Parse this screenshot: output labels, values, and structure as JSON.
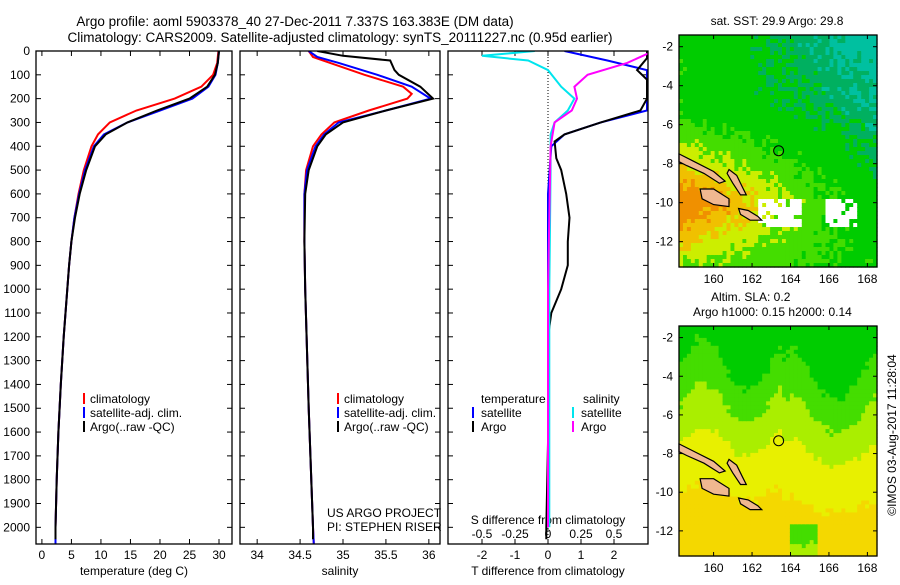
{
  "title": {
    "line1": "Argo profile: aoml 5903378_40 27-Dec-2011 7.337S 163.383E (DM data)",
    "line2": "Climatology: CARS2009. Satellite-adjusted climatology: synTS_20111227.nc (0.95d earlier)"
  },
  "colors": {
    "argo": "#000000",
    "climatology": "#ff0000",
    "satellite": "#0000ff",
    "s_satellite": "#00e5ee",
    "s_argo": "#ff00ff"
  },
  "depth_axis": {
    "ticks": [
      0,
      100,
      200,
      300,
      400,
      500,
      600,
      700,
      800,
      900,
      1000,
      1100,
      1200,
      1300,
      1400,
      1500,
      1600,
      1700,
      1800,
      1900,
      2000
    ],
    "range": [
      0,
      2070
    ]
  },
  "chart_data": [
    {
      "type": "line",
      "id": "temperature",
      "xlabel": "temperature (deg C)",
      "ylabel": "depth",
      "xlim": [
        -1,
        32.2
      ],
      "xticks": [
        0,
        5,
        10,
        15,
        20,
        25,
        30
      ],
      "legend": [
        "climatology",
        "satellite-adj. clim.",
        "Argo(..raw -QC)"
      ],
      "series": [
        {
          "name": "climatology",
          "color": "#ff0000",
          "depth": [
            0,
            50,
            100,
            150,
            200,
            250,
            300,
            350,
            400,
            500,
            600,
            700,
            800,
            900,
            1000,
            1200,
            1400,
            1600,
            1800,
            2000,
            2070
          ],
          "values": [
            29.9,
            29.7,
            29.0,
            27.0,
            22.5,
            16.0,
            11.5,
            9.5,
            8.4,
            7.1,
            6.2,
            5.5,
            5.0,
            4.6,
            4.3,
            3.7,
            3.2,
            2.8,
            2.5,
            2.3,
            2.3
          ]
        },
        {
          "name": "satellite-adj. clim.",
          "color": "#0000ff",
          "depth": [
            0,
            50,
            100,
            150,
            200,
            250,
            300,
            350,
            400,
            500,
            600,
            700,
            800,
            900,
            1000,
            1200,
            1400,
            1600,
            1800,
            2000,
            2070
          ],
          "values": [
            30.0,
            29.8,
            29.4,
            28.2,
            25.5,
            20.0,
            14.5,
            10.5,
            8.8,
            7.3,
            6.3,
            5.5,
            5.0,
            4.6,
            4.3,
            3.7,
            3.2,
            2.8,
            2.5,
            2.3,
            2.3
          ]
        },
        {
          "name": "Argo(..raw -QC)",
          "color": "#000000",
          "depth": [
            0,
            50,
            100,
            150,
            200,
            250,
            300,
            350,
            400,
            500,
            600,
            700,
            800,
            900,
            1000,
            1200,
            1400,
            1600,
            1800,
            2000,
            2050
          ],
          "values": [
            30.0,
            29.8,
            29.3,
            28.0,
            25.0,
            19.5,
            14.5,
            10.8,
            9.0,
            7.5,
            6.4,
            5.6,
            5.0,
            4.6,
            4.3,
            3.7,
            3.2,
            2.8,
            2.5,
            2.3,
            2.3
          ]
        }
      ]
    },
    {
      "type": "line",
      "id": "salinity",
      "xlabel": "salinity",
      "xlim": [
        33.8,
        36.13
      ],
      "xticks": [
        34,
        34.5,
        35,
        35.5,
        36
      ],
      "legend": [
        "climatology",
        "satellite-adj. clim.",
        "Argo(..raw -QC)"
      ],
      "annotation": [
        "US ARGO PROJECT",
        "PI: STEPHEN RISER"
      ],
      "series": [
        {
          "name": "climatology",
          "color": "#ff0000",
          "depth": [
            0,
            25,
            50,
            100,
            150,
            180,
            200,
            250,
            300,
            350,
            400,
            500,
            600,
            800,
            1000,
            1500,
            2000,
            2070
          ],
          "values": [
            34.6,
            34.65,
            34.85,
            35.25,
            35.7,
            35.8,
            35.75,
            35.3,
            34.9,
            34.75,
            34.65,
            34.57,
            34.55,
            34.55,
            34.56,
            34.6,
            34.65,
            34.66
          ]
        },
        {
          "name": "satellite-adj. clim.",
          "color": "#0000ff",
          "depth": [
            0,
            25,
            50,
            100,
            150,
            200,
            250,
            300,
            350,
            400,
            500,
            600,
            800,
            1000,
            1500,
            2000,
            2070
          ],
          "values": [
            34.6,
            34.7,
            34.95,
            35.4,
            35.8,
            36.02,
            35.5,
            34.95,
            34.78,
            34.68,
            34.58,
            34.55,
            34.55,
            34.56,
            34.6,
            34.65,
            34.66
          ]
        },
        {
          "name": "Argo(..raw -QC)",
          "color": "#000000",
          "depth": [
            0,
            20,
            40,
            80,
            100,
            150,
            200,
            250,
            300,
            350,
            400,
            500,
            600,
            800,
            1000,
            1500,
            2000,
            2050
          ],
          "values": [
            34.7,
            35.0,
            35.55,
            35.6,
            35.65,
            35.9,
            36.05,
            35.5,
            35.0,
            34.8,
            34.7,
            34.6,
            34.56,
            34.55,
            34.56,
            34.6,
            34.65,
            34.65
          ]
        }
      ]
    },
    {
      "type": "line",
      "id": "difference",
      "xlabel": "T difference from climatology",
      "xlabel2": "S difference from climatology",
      "xlim": [
        -3.03,
        3.03
      ],
      "xticks": [
        -2,
        -1,
        0,
        1,
        2
      ],
      "xticks2": [
        -0.5,
        -0.25,
        0,
        0.25,
        0.5
      ],
      "legend_headers": [
        "temperature",
        "salinity"
      ],
      "legend": [
        {
          "label": "satellite",
          "color": "#0000ff"
        },
        {
          "label": "Argo",
          "color": "#000000"
        },
        {
          "label": "satellite",
          "color": "#00e5ee"
        },
        {
          "label": "Argo",
          "color": "#ff00ff"
        }
      ],
      "series": [
        {
          "name": "T satellite",
          "units": "T",
          "color": "#0000ff",
          "depth": [
            0,
            40,
            80,
            250,
            300,
            350,
            400,
            600,
            2000
          ],
          "values": [
            0.5,
            1.8,
            3.0,
            3.0,
            1.6,
            0.5,
            0.1,
            0.0,
            0.0
          ]
        },
        {
          "name": "T Argo",
          "units": "T",
          "color": "#000000",
          "depth": [
            0,
            30,
            80,
            120,
            200,
            250,
            300,
            350,
            380,
            450,
            500,
            600,
            700,
            800,
            900,
            1000,
            1100,
            1200,
            1500,
            2000,
            2050
          ],
          "values": [
            3.0,
            3.0,
            2.7,
            3.0,
            3.0,
            2.8,
            1.6,
            0.5,
            0.2,
            0.25,
            0.4,
            0.55,
            0.65,
            0.6,
            0.6,
            0.4,
            0.1,
            0.0,
            0.02,
            -0.05,
            -0.05
          ]
        },
        {
          "name": "S satellite",
          "units": "S",
          "color": "#00e5ee",
          "depth": [
            0,
            20,
            40,
            80,
            150,
            200,
            250,
            300,
            350,
            500,
            1000,
            2000
          ],
          "values": [
            -0.1,
            -0.5,
            -0.15,
            0.0,
            0.1,
            0.2,
            0.15,
            0.05,
            0.02,
            0.02,
            0.01,
            0.01
          ]
        },
        {
          "name": "S Argo",
          "units": "S",
          "color": "#ff00ff",
          "depth": [
            0,
            50,
            100,
            150,
            200,
            250,
            300,
            400,
            1000,
            2000
          ],
          "values": [
            0.8,
            0.6,
            0.3,
            0.2,
            0.22,
            0.18,
            0.05,
            0.02,
            0.0,
            0.0
          ]
        }
      ]
    },
    {
      "type": "heatmap",
      "id": "sst_map",
      "title": "sat. SST: 29.9 Argo: 29.8",
      "lonlim": [
        158.2,
        168.5
      ],
      "latlim": [
        -13.3,
        -1.4
      ],
      "lonticks": [
        160,
        162,
        164,
        166,
        168
      ],
      "latticks": [
        -2,
        -4,
        -6,
        -8,
        -10,
        -12
      ],
      "marker": {
        "lon": 163.383,
        "lat": -7.337
      }
    },
    {
      "type": "heatmap",
      "id": "sla_map",
      "title": "Altim. SLA: 0.2",
      "subtitle": "Argo h1000: 0.15 h2000: 0.14",
      "lonlim": [
        158.2,
        168.5
      ],
      "latlim": [
        -13.3,
        -1.4
      ],
      "lonticks": [
        160,
        162,
        164,
        166,
        168
      ],
      "latticks": [
        -2,
        -4,
        -6,
        -8,
        -10,
        -12
      ],
      "marker": {
        "lon": 163.383,
        "lat": -7.337
      }
    }
  ],
  "watermark": "©IMOS 03-Aug-2017 11:28:04"
}
